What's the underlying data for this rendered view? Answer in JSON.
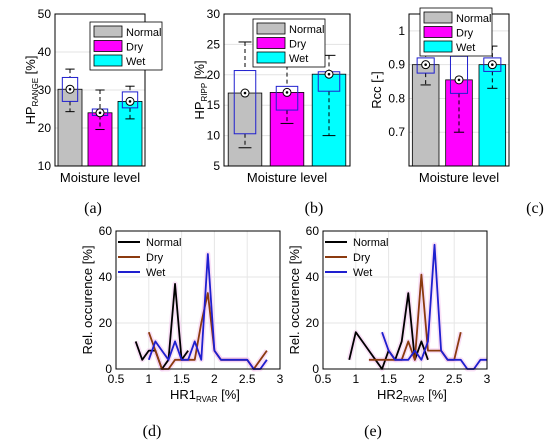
{
  "colors": {
    "normal": "#c0c0c0",
    "dry": "#ff00ff",
    "wet": "#00ffff",
    "box": "#1f1fcf",
    "black_line": "#000000",
    "brown_line": "#8b3a0f",
    "blue_line": "#1f1fcf",
    "halo": "#f4c6ef"
  },
  "chart_data": [
    {
      "type": "bar",
      "panel": "(a)",
      "categories": [
        "Normal",
        "Dry",
        "Wet"
      ],
      "values": [
        30.2,
        24.0,
        27.0
      ],
      "box": {
        "q1": [
          27,
          23.3,
          25.3
        ],
        "q3": [
          33.3,
          25,
          29.5
        ],
        "median": [
          30.2,
          24,
          27
        ],
        "whisker_low": [
          24.3,
          19.6,
          22.4
        ],
        "whisker_high": [
          35.5,
          30,
          31
        ]
      },
      "ylabel": "HP",
      "ylabel_sub": "RANGE",
      "ylabel_unit": " [%]",
      "xlabel": "Moisture level",
      "ylim": [
        10,
        50
      ],
      "yticks": [
        "10",
        "20",
        "30",
        "40",
        "50"
      ],
      "legend": [
        "Normal",
        "Dry",
        "Wet"
      ],
      "legend_position": "top-right",
      "grid": true
    },
    {
      "type": "bar",
      "panel": "(b)",
      "categories": [
        "Normal",
        "Dry",
        "Wet"
      ],
      "values": [
        17.0,
        17.1,
        20.1
      ],
      "box": {
        "q1": [
          10.3,
          14.2,
          17.3
        ],
        "q3": [
          20.7,
          18.1,
          20.5
        ],
        "median": [
          17,
          17.1,
          20.1
        ],
        "whisker_low": [
          8,
          12,
          10
        ],
        "whisker_high": [
          25.4,
          21.5,
          23.2
        ]
      },
      "ylabel": "HP",
      "ylabel_sub": "RIPP",
      "ylabel_unit": " [%]",
      "xlabel": "Moisture level",
      "ylim": [
        5,
        30
      ],
      "yticks": [
        "5",
        "10",
        "15",
        "20",
        "25",
        "30"
      ],
      "legend": [
        "Normal",
        "Dry",
        "Wet"
      ],
      "legend_position": "top-right",
      "grid": true
    },
    {
      "type": "bar",
      "panel": "(c)",
      "categories": [
        "Normal",
        "Dry",
        "Wet"
      ],
      "values": [
        0.9,
        0.855,
        0.9
      ],
      "box": {
        "q1": [
          0.875,
          0.815,
          0.88
        ],
        "q3": [
          0.92,
          0.925,
          0.92
        ],
        "median": [
          0.9,
          0.855,
          0.9
        ],
        "whisker_low": [
          0.84,
          0.7,
          0.83
        ],
        "whisker_high": [
          0.935,
          0.96,
          0.955
        ]
      },
      "ylabel": "Rcc [-]",
      "ylabel_sub": "",
      "ylabel_unit": "",
      "xlabel": "Moisture level",
      "ylim": [
        0.6,
        1.05
      ],
      "yticks": [
        "0.7",
        "0.8",
        "0.9",
        "1"
      ],
      "legend": [
        "Normal",
        "Dry",
        "Wet"
      ],
      "legend_position": "top-right",
      "grid": true
    },
    {
      "type": "line",
      "panel": "(d)",
      "xlabel": "HR1",
      "xlabel_sub": "RVAR",
      "xlabel_unit": " [%]",
      "ylabel": "Rel. occurence [%]",
      "xlim": [
        0.5,
        3
      ],
      "ylim": [
        0,
        60
      ],
      "xticks": [
        "0.5",
        "1",
        "1.5",
        "2",
        "2.5",
        "3"
      ],
      "yticks": [
        "0",
        "20",
        "40",
        "60"
      ],
      "legend_position": "top-right",
      "grid": true,
      "series": [
        {
          "name": "Normal",
          "x": [
            0.8,
            0.9,
            1.0,
            1.1,
            1.2,
            1.3,
            1.4,
            1.5,
            1.6
          ],
          "y": [
            12,
            4,
            8,
            8,
            0,
            4,
            37,
            4,
            8
          ]
        },
        {
          "name": "Dry",
          "x": [
            1.0,
            1.1,
            1.2,
            1.3,
            1.4,
            1.5,
            1.6,
            1.7,
            1.8,
            1.9,
            2.0,
            2.1,
            2.2,
            2.3,
            2.4,
            2.5,
            2.6,
            2.7,
            2.8
          ],
          "y": [
            16,
            8,
            0,
            0,
            4,
            4,
            4,
            4,
            20,
            33,
            8,
            4,
            4,
            4,
            4,
            4,
            0,
            4,
            8
          ]
        },
        {
          "name": "Wet",
          "x": [
            1.0,
            1.1,
            1.2,
            1.3,
            1.4,
            1.5,
            1.6,
            1.7,
            1.8,
            1.9,
            2.0,
            2.1,
            2.2,
            2.3,
            2.4,
            2.5,
            2.6,
            2.7,
            2.8
          ],
          "y": [
            4,
            12,
            8,
            4,
            12,
            4,
            4,
            12,
            4,
            50,
            8,
            4,
            4,
            4,
            4,
            4,
            0,
            0,
            4
          ]
        }
      ]
    },
    {
      "type": "line",
      "panel": "(e)",
      "xlabel": "HR2",
      "xlabel_sub": "RVAR",
      "xlabel_unit": " [%]",
      "ylabel": "Rel. occurence [%]",
      "xlim": [
        0.5,
        3
      ],
      "ylim": [
        0,
        60
      ],
      "xticks": [
        "0.5",
        "1",
        "1.5",
        "2",
        "2.5",
        "3"
      ],
      "yticks": [
        "0",
        "20",
        "40",
        "60"
      ],
      "legend_position": "top-right",
      "grid": true,
      "series": [
        {
          "name": "Normal",
          "x": [
            0.9,
            1.0,
            1.1,
            1.2,
            1.3,
            1.4,
            1.5,
            1.6,
            1.7,
            1.8,
            1.9,
            2.0,
            2.1
          ],
          "y": [
            4,
            16,
            12,
            8,
            4,
            0,
            8,
            4,
            12,
            33,
            4,
            12,
            4
          ]
        },
        {
          "name": "Dry",
          "x": [
            1.2,
            1.3,
            1.4,
            1.5,
            1.6,
            1.7,
            1.8,
            1.9,
            2.0,
            2.1,
            2.2,
            2.3,
            2.4,
            2.5,
            2.6
          ],
          "y": [
            4,
            4,
            4,
            4,
            4,
            4,
            12,
            4,
            41,
            8,
            8,
            8,
            4,
            4,
            16
          ]
        },
        {
          "name": "Wet",
          "x": [
            1.4,
            1.5,
            1.6,
            1.7,
            1.8,
            1.9,
            2.0,
            2.1,
            2.2,
            2.3,
            2.4,
            2.5,
            2.6,
            2.7,
            2.8,
            2.9,
            3.0
          ],
          "y": [
            16,
            8,
            4,
            4,
            4,
            8,
            4,
            12,
            54,
            8,
            4,
            4,
            4,
            0,
            0,
            4,
            4
          ]
        }
      ]
    }
  ]
}
